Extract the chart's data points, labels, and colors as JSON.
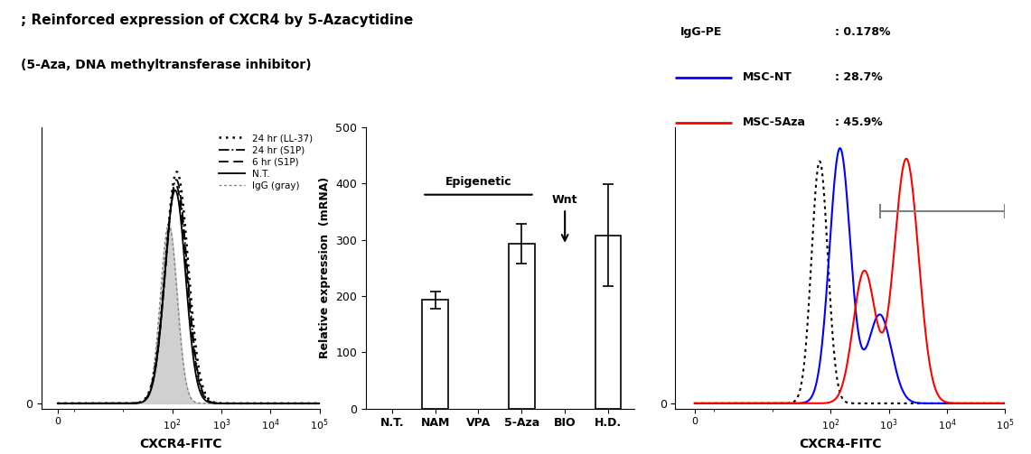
{
  "title_line1": "; Reinforced expression of CXCR4 by 5-Azacytidine",
  "title_line2": "(5-Aza, DNA methyltransferase inhibitor)",
  "panel1": {
    "xlabel": "CXCR4-FITC"
  },
  "panel2": {
    "categories": [
      "N.T.",
      "NAM",
      "VPA",
      "5-Aza",
      "BIO",
      "H.D."
    ],
    "values": [
      0,
      193,
      0,
      293,
      0,
      308
    ],
    "errors": [
      0,
      15,
      0,
      35,
      0,
      90
    ],
    "ylabel": "Relative expression  (mRNA)",
    "ylim": [
      0,
      500
    ],
    "yticks": [
      0,
      100,
      200,
      300,
      400,
      500
    ]
  },
  "panel3": {
    "xlabel": "CXCR4-FITC",
    "legend_items": [
      {
        "label": "IgG-PE",
        "pct": "0.178%",
        "color": "black",
        "style": "dotted"
      },
      {
        "label": "MSC-NT",
        "pct": "28.7%",
        "color": "blue",
        "style": "solid"
      },
      {
        "label": "MSC-5Aza",
        "pct": "45.9%",
        "color": "red",
        "style": "solid"
      }
    ]
  }
}
